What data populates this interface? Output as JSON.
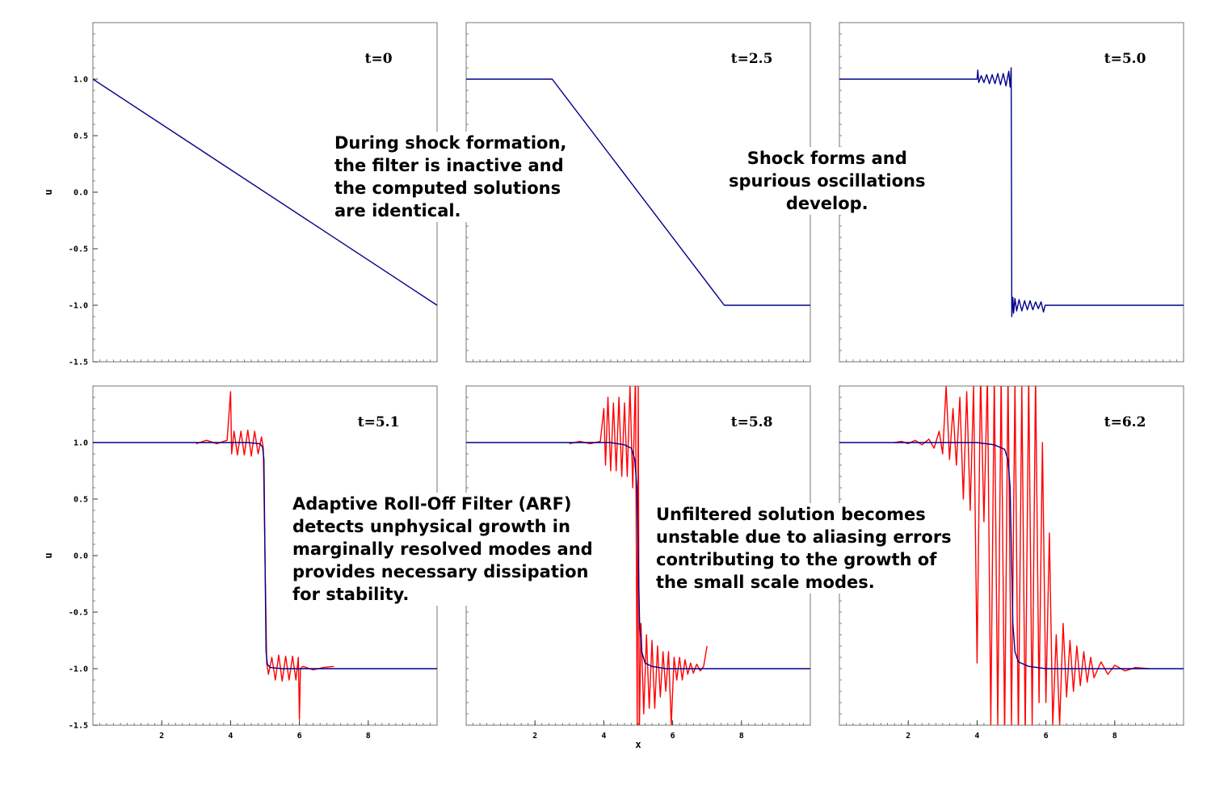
{
  "chart_data": [
    {
      "type": "line",
      "title": "t=0",
      "ylabel": "u",
      "xlabel": "",
      "xlim": [
        0,
        10
      ],
      "ylim": [
        -1.5,
        1.5
      ],
      "xticks": [],
      "yticks": [
        1.0,
        0.5,
        0.0,
        -0.5,
        -1.0,
        -1.5
      ],
      "series": [
        {
          "color": "#00008b",
          "x": [
            0,
            10
          ],
          "y": [
            1.0,
            -1.0
          ]
        }
      ]
    },
    {
      "type": "line",
      "title": "t=2.5",
      "ylabel": "",
      "xlabel": "",
      "xlim": [
        0,
        10
      ],
      "ylim": [
        -1.5,
        1.5
      ],
      "xticks": [],
      "yticks": [],
      "series": [
        {
          "color": "#00008b",
          "x": [
            0,
            2.5,
            7.5,
            10
          ],
          "y": [
            1.0,
            1.0,
            -1.0,
            -1.0
          ]
        }
      ]
    },
    {
      "type": "line",
      "title": "t=5.0",
      "ylabel": "",
      "xlabel": "",
      "xlim": [
        0,
        10
      ],
      "ylim": [
        -1.5,
        1.5
      ],
      "xticks": [],
      "yticks": [],
      "series": [
        {
          "color": "#00008b",
          "x": [
            0,
            4.0,
            4.02,
            4.05,
            4.12,
            4.2,
            4.28,
            4.36,
            4.44,
            4.52,
            4.6,
            4.68,
            4.76,
            4.84,
            4.92,
            4.96,
            4.99,
            5.01,
            5.04,
            5.06,
            5.1,
            5.15,
            5.22,
            5.3,
            5.38,
            5.46,
            5.54,
            5.62,
            5.7,
            5.78,
            5.86,
            5.93,
            5.98,
            6.0,
            10
          ],
          "y": [
            1.0,
            1.0,
            1.08,
            0.97,
            1.03,
            0.97,
            1.04,
            0.96,
            1.04,
            0.96,
            1.05,
            0.95,
            1.05,
            0.94,
            1.07,
            0.93,
            1.1,
            -1.1,
            -0.93,
            -1.07,
            -0.94,
            -1.05,
            -0.95,
            -1.05,
            -0.96,
            -1.04,
            -0.96,
            -1.04,
            -0.97,
            -1.03,
            -0.97,
            -1.06,
            -1.0,
            -1.0,
            -1.0
          ]
        }
      ]
    },
    {
      "type": "line",
      "title": "t=5.1",
      "ylabel": "u",
      "xlabel": "",
      "xlim": [
        0,
        10
      ],
      "ylim": [
        -1.5,
        1.5
      ],
      "xticks": [
        2,
        4,
        6,
        8
      ],
      "yticks": [
        1.0,
        0.5,
        0.0,
        -0.5,
        -1.0,
        -1.5
      ],
      "series": [
        {
          "color": "#ff0000",
          "x": [
            3.0,
            3.3,
            3.6,
            3.9,
            4.0,
            4.03,
            4.1,
            4.2,
            4.3,
            4.4,
            4.5,
            4.6,
            4.7,
            4.8,
            4.9,
            4.95,
            5.0,
            5.05,
            5.1,
            5.2,
            5.3,
            5.4,
            5.5,
            5.6,
            5.7,
            5.8,
            5.9,
            5.97,
            6.0,
            6.03,
            6.1,
            6.4,
            6.7,
            7.0
          ],
          "y": [
            0.99,
            1.02,
            0.99,
            1.02,
            1.45,
            0.9,
            1.1,
            0.89,
            1.1,
            0.89,
            1.11,
            0.88,
            1.1,
            0.9,
            1.05,
            0.95,
            0.0,
            -0.95,
            -1.05,
            -0.9,
            -1.1,
            -0.88,
            -1.11,
            -0.89,
            -1.1,
            -0.89,
            -1.1,
            -0.9,
            -1.45,
            -1.0,
            -0.98,
            -1.01,
            -0.99,
            -0.98
          ]
        },
        {
          "color": "#00008b",
          "x": [
            0,
            4.5,
            4.85,
            4.93,
            4.97,
            5.0,
            5.03,
            5.07,
            5.15,
            5.5,
            10
          ],
          "y": [
            1.0,
            1.0,
            0.99,
            0.96,
            0.85,
            0.0,
            -0.85,
            -0.96,
            -0.99,
            -1.0,
            -1.0
          ]
        }
      ]
    },
    {
      "type": "line",
      "title": "t=5.8",
      "ylabel": "",
      "xlabel": "x",
      "xlim": [
        0,
        10
      ],
      "ylim": [
        -1.5,
        1.5
      ],
      "xticks": [
        2,
        4,
        6,
        8
      ],
      "yticks": [],
      "series": [
        {
          "color": "#ff0000",
          "x": [
            3.0,
            3.3,
            3.6,
            3.9,
            4.0,
            4.05,
            4.12,
            4.2,
            4.28,
            4.36,
            4.44,
            4.52,
            4.6,
            4.68,
            4.76,
            4.84,
            4.92,
            4.97,
            5.0,
            5.03,
            5.08,
            5.16,
            5.24,
            5.32,
            5.4,
            5.48,
            5.56,
            5.64,
            5.72,
            5.8,
            5.88,
            5.96,
            6.04,
            6.12,
            6.2,
            6.28,
            6.36,
            6.44,
            6.52,
            6.6,
            6.7,
            6.8,
            6.9,
            7.0
          ],
          "y": [
            0.99,
            1.01,
            0.99,
            1.01,
            1.3,
            0.8,
            1.4,
            0.75,
            1.35,
            0.75,
            1.4,
            0.7,
            1.35,
            0.7,
            1.5,
            0.6,
            1.6,
            -1.5,
            1.5,
            -1.6,
            -0.6,
            -1.4,
            -0.7,
            -1.35,
            -0.75,
            -1.35,
            -0.8,
            -1.25,
            -0.85,
            -1.2,
            -0.85,
            -1.5,
            -0.9,
            -1.1,
            -0.9,
            -1.1,
            -0.92,
            -1.05,
            -0.95,
            -1.04,
            -0.96,
            -1.02,
            -0.98,
            -0.8
          ]
        },
        {
          "color": "#00008b",
          "x": [
            0,
            4.2,
            4.6,
            4.8,
            4.9,
            4.96,
            5.0,
            5.04,
            5.1,
            5.2,
            5.4,
            5.8,
            10
          ],
          "y": [
            1.0,
            1.0,
            0.98,
            0.95,
            0.85,
            0.6,
            0.0,
            -0.6,
            -0.85,
            -0.95,
            -0.98,
            -1.0,
            -1.0
          ]
        }
      ]
    },
    {
      "type": "line",
      "title": "t=6.2",
      "ylabel": "",
      "xlabel": "",
      "xlim": [
        0,
        10
      ],
      "ylim": [
        -1.5,
        1.5
      ],
      "xticks": [
        2,
        4,
        6,
        8
      ],
      "yticks": [],
      "series": [
        {
          "color": "#ff0000",
          "x": [
            1.6,
            1.8,
            2.0,
            2.2,
            2.4,
            2.6,
            2.75,
            2.9,
            3.0,
            3.1,
            3.2,
            3.3,
            3.4,
            3.5,
            3.6,
            3.7,
            3.8,
            3.9,
            4.0,
            4.1,
            4.2,
            4.3,
            4.4,
            4.5,
            4.6,
            4.7,
            4.8,
            4.9,
            5.0,
            5.1,
            5.2,
            5.3,
            5.4,
            5.5,
            5.6,
            5.7,
            5.8,
            5.9,
            6.0,
            6.1,
            6.2,
            6.3,
            6.4,
            6.5,
            6.6,
            6.7,
            6.8,
            6.9,
            7.0,
            7.1,
            7.2,
            7.3,
            7.4,
            7.6,
            7.8,
            8.0,
            8.3,
            8.6,
            9.0
          ],
          "y": [
            1.0,
            1.01,
            0.99,
            1.02,
            0.98,
            1.03,
            0.95,
            1.1,
            0.9,
            1.5,
            0.85,
            1.3,
            0.8,
            1.4,
            0.5,
            1.45,
            0.4,
            1.5,
            -0.95,
            1.6,
            0.3,
            1.6,
            -1.5,
            1.6,
            -1.5,
            1.6,
            -1.6,
            1.6,
            -1.5,
            1.55,
            -1.6,
            1.5,
            -1.6,
            1.6,
            -1.5,
            1.6,
            -1.3,
            1.0,
            -1.3,
            0.2,
            -1.5,
            -0.7,
            -1.5,
            -0.6,
            -1.25,
            -0.75,
            -1.2,
            -0.8,
            -1.15,
            -0.85,
            -1.12,
            -0.9,
            -1.08,
            -0.94,
            -1.05,
            -0.97,
            -1.02,
            -0.99,
            -1.0
          ]
        },
        {
          "color": "#00008b",
          "x": [
            0,
            4.0,
            4.5,
            4.8,
            4.9,
            4.96,
            5.0,
            5.04,
            5.1,
            5.2,
            5.5,
            6.0,
            10
          ],
          "y": [
            1.0,
            1.0,
            0.98,
            0.94,
            0.85,
            0.6,
            0.0,
            -0.6,
            -0.85,
            -0.94,
            -0.98,
            -1.0,
            -1.0
          ]
        }
      ]
    }
  ],
  "annotations": [
    {
      "lines": [
        "During shock formation,",
        "the filter is inactive and",
        "the computed solutions",
        "are identical."
      ]
    },
    {
      "lines": [
        "Shock forms and",
        "spurious oscillations",
        "develop."
      ]
    },
    {
      "lines": [
        "Adaptive Roll-Off Filter (ARF)",
        "detects unphysical growth in",
        "marginally resolved modes and",
        "provides necessary dissipation",
        "for stability."
      ]
    },
    {
      "lines": [
        "Unfiltered solution becomes",
        "unstable due to aliasing errors",
        "contributing to the growth of",
        "the small scale modes."
      ]
    }
  ]
}
